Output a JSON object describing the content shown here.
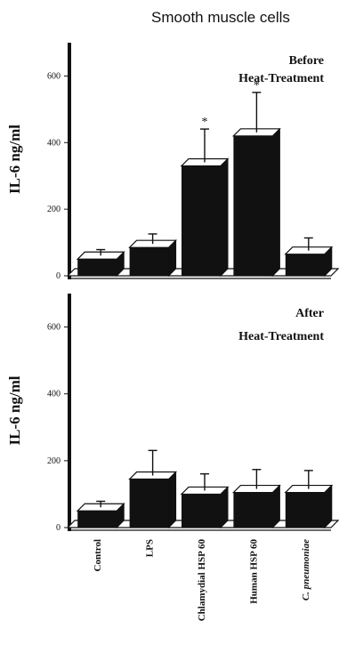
{
  "figure": {
    "title": "Smooth muscle cells"
  },
  "chart_data": [
    {
      "type": "bar",
      "panel_label": [
        "Before",
        "Heat-Treatment"
      ],
      "ylabel": "IL-6 ng/ml",
      "ylim": [
        0,
        700
      ],
      "yticks": [
        0,
        200,
        400,
        600
      ],
      "categories": [
        "Control",
        "LPS",
        "Chlamydial HSP 60",
        "Human HSP 60",
        "C. pneumoniae"
      ],
      "values": [
        50,
        85,
        330,
        420,
        65
      ],
      "errors": [
        18,
        30,
        100,
        120,
        38
      ],
      "significance": [
        "",
        "",
        "*",
        "*",
        ""
      ],
      "bar_color": "#111111"
    },
    {
      "type": "bar",
      "panel_label": [
        "After",
        "Heat-Treatment"
      ],
      "ylabel": "IL-6 ng/ml",
      "ylim": [
        0,
        700
      ],
      "yticks": [
        0,
        200,
        400,
        600
      ],
      "categories": [
        "Control",
        "LPS",
        "Chlamydial HSP 60",
        "Human HSP 60",
        "C. pneumoniae"
      ],
      "values": [
        50,
        145,
        100,
        105,
        105
      ],
      "errors": [
        18,
        75,
        50,
        58,
        55
      ],
      "significance": [
        "",
        "",
        "",
        "",
        ""
      ],
      "bar_color": "#111111"
    }
  ]
}
